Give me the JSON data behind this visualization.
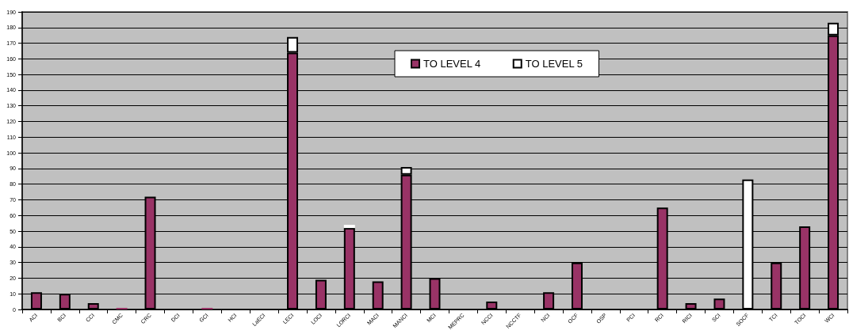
{
  "chart_data": {
    "type": "bar",
    "stacked": true,
    "categories": [
      "ACI",
      "BCI",
      "CCI",
      "CMC",
      "CRC",
      "DCI",
      "GCI",
      "HCI",
      "LaECI",
      "LECI",
      "LOCI",
      "LORCI",
      "MACI",
      "MANCI",
      "MCI",
      "MEPRC",
      "NCCI",
      "NCCTF",
      "NCI",
      "OCF",
      "OSP",
      "PCI",
      "RCI",
      "RICI",
      "SCI",
      "SOCF",
      "TCI",
      "TOCI",
      "WCI"
    ],
    "series": [
      {
        "name": "TO LEVEL 4",
        "color": "#993366",
        "values": [
          11,
          10,
          4,
          1,
          72,
          0,
          1,
          0,
          0,
          164,
          19,
          52,
          18,
          86,
          20,
          0,
          5,
          0,
          11,
          30,
          0,
          0,
          65,
          4,
          7,
          0,
          30,
          53,
          175
        ]
      },
      {
        "name": "TO LEVEL 5",
        "color": "#ffffff",
        "values": [
          0,
          0,
          0,
          0,
          0,
          0,
          0,
          0,
          0,
          10,
          0,
          2,
          0,
          5,
          0,
          0,
          0,
          0,
          0,
          0,
          0,
          0,
          0,
          0,
          0,
          83,
          0,
          0,
          8
        ]
      }
    ],
    "ylim": [
      0,
      190
    ],
    "yticks": [
      0,
      10,
      20,
      30,
      40,
      50,
      60,
      70,
      80,
      90,
      100,
      110,
      120,
      130,
      140,
      150,
      160,
      170,
      180,
      190
    ],
    "grid": "y",
    "legend": "top"
  }
}
